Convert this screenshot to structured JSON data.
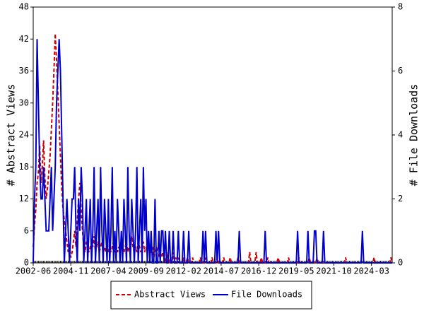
{
  "chart_data": {
    "type": "line",
    "y_label": "# Abstract Views",
    "y2_label": "# File Downloads",
    "x": [
      "2002-06",
      "2002-07",
      "2002-08",
      "2002-09",
      "2002-10",
      "2002-11",
      "2002-12",
      "2003-01",
      "2003-02",
      "2003-03",
      "2003-04",
      "2003-05",
      "2003-06",
      "2003-07",
      "2003-08",
      "2003-09",
      "2003-10",
      "2003-11",
      "2003-12",
      "2004-01",
      "2004-02",
      "2004-03",
      "2004-04",
      "2004-05",
      "2004-06",
      "2004-07",
      "2004-08",
      "2004-09",
      "2004-10",
      "2004-11",
      "2004-12",
      "2005-01",
      "2005-02",
      "2005-03",
      "2005-04",
      "2005-05",
      "2005-06",
      "2005-07",
      "2005-08",
      "2005-09",
      "2005-10",
      "2005-11",
      "2005-12",
      "2006-01",
      "2006-02",
      "2006-03",
      "2006-04",
      "2006-05",
      "2006-06",
      "2006-07",
      "2006-08",
      "2006-09",
      "2006-10",
      "2006-11",
      "2006-12",
      "2007-01",
      "2007-02",
      "2007-03",
      "2007-04",
      "2007-05",
      "2007-06",
      "2007-07",
      "2007-08",
      "2007-09",
      "2007-10",
      "2007-11",
      "2007-12",
      "2008-01",
      "2008-02",
      "2008-03",
      "2008-04",
      "2008-05",
      "2008-06",
      "2008-07",
      "2008-08",
      "2008-09",
      "2008-10",
      "2008-11",
      "2008-12",
      "2009-01",
      "2009-02",
      "2009-03",
      "2009-04",
      "2009-05",
      "2009-06",
      "2009-07",
      "2009-08",
      "2009-09",
      "2009-10",
      "2009-11",
      "2009-12",
      "2010-01",
      "2010-02",
      "2010-03",
      "2010-04",
      "2010-05",
      "2010-06",
      "2010-07",
      "2010-08",
      "2010-09",
      "2010-10",
      "2010-11",
      "2010-12",
      "2011-01",
      "2011-02",
      "2011-03",
      "2011-04",
      "2011-05",
      "2011-06",
      "2011-07",
      "2011-08",
      "2011-09",
      "2011-10",
      "2011-11",
      "2011-12",
      "2012-01",
      "2012-02",
      "2012-03",
      "2012-04",
      "2012-05",
      "2012-06",
      "2012-07",
      "2012-08",
      "2012-09",
      "2012-10",
      "2012-11",
      "2012-12",
      "2013-01",
      "2013-02",
      "2013-03",
      "2013-04",
      "2013-05",
      "2013-06",
      "2013-07",
      "2013-08",
      "2013-09",
      "2013-10",
      "2013-11",
      "2013-12",
      "2014-01",
      "2014-02",
      "2014-03",
      "2014-04",
      "2014-05",
      "2014-06",
      "2014-07",
      "2014-08",
      "2014-09",
      "2014-10",
      "2014-11",
      "2014-12",
      "2015-01",
      "2015-02",
      "2015-03",
      "2015-04",
      "2015-05",
      "2015-06",
      "2015-07",
      "2015-08",
      "2015-09",
      "2015-10",
      "2015-11",
      "2015-12",
      "2016-01",
      "2016-02",
      "2016-03",
      "2016-04",
      "2016-05",
      "2016-06",
      "2016-07",
      "2016-08",
      "2016-09",
      "2016-10",
      "2016-11",
      "2016-12",
      "2017-01",
      "2017-02",
      "2017-03",
      "2017-04",
      "2017-05",
      "2017-06",
      "2017-07",
      "2017-08",
      "2017-09",
      "2017-10",
      "2017-11",
      "2017-12",
      "2018-01",
      "2018-02",
      "2018-03",
      "2018-04",
      "2018-05",
      "2018-06",
      "2018-07",
      "2018-08",
      "2018-09",
      "2018-10",
      "2018-11",
      "2018-12",
      "2019-01",
      "2019-02",
      "2019-03",
      "2019-04",
      "2019-05",
      "2019-06",
      "2019-07",
      "2019-08",
      "2019-09",
      "2019-10",
      "2019-11",
      "2019-12",
      "2020-01",
      "2020-02",
      "2020-03",
      "2020-04",
      "2020-05",
      "2020-06",
      "2020-07",
      "2020-08",
      "2020-09",
      "2020-10",
      "2020-11",
      "2020-12",
      "2021-01",
      "2021-02",
      "2021-03",
      "2021-04",
      "2021-05",
      "2021-06",
      "2021-07",
      "2021-08",
      "2021-09",
      "2021-10",
      "2021-11",
      "2021-12",
      "2022-01",
      "2022-02",
      "2022-03",
      "2022-04",
      "2022-05",
      "2022-06",
      "2022-07",
      "2022-08",
      "2022-09",
      "2022-10",
      "2022-11",
      "2022-12",
      "2023-01",
      "2023-02",
      "2023-03",
      "2023-04",
      "2023-05",
      "2023-06",
      "2023-07",
      "2023-08",
      "2023-09",
      "2023-10",
      "2023-11",
      "2023-12",
      "2024-01",
      "2024-02",
      "2024-03",
      "2024-04",
      "2024-05",
      "2024-06",
      "2024-07",
      "2024-08",
      "2024-09",
      "2024-10",
      "2024-11",
      "2024-12",
      "2025-01",
      "2025-02",
      "2025-03",
      "2025-04",
      "2025-05",
      "2025-06",
      "2025-07"
    ],
    "xticks": [
      "2002-06",
      "2004-11",
      "2007-04",
      "2009-09",
      "2012-02",
      "2014-07",
      "2016-12",
      "2019-05",
      "2021-10",
      "2024-03"
    ],
    "ylim": [
      0,
      48
    ],
    "yticks": [
      0,
      6,
      12,
      18,
      24,
      30,
      36,
      42,
      48
    ],
    "y2lim": [
      0,
      8
    ],
    "y2ticks": [
      0,
      2,
      4,
      6,
      8
    ],
    "series": [
      {
        "name": "Abstract Views",
        "color": "#cc0000",
        "dash": true,
        "values": [
          3,
          7,
          10,
          15,
          17,
          22,
          15,
          18,
          23,
          16,
          12,
          14,
          17,
          20,
          25,
          30,
          36,
          43,
          38,
          32,
          26,
          20,
          14,
          10,
          8,
          6,
          4,
          2,
          3,
          1,
          2,
          4,
          6,
          3,
          8,
          12,
          15,
          10,
          6,
          3,
          2,
          4,
          3,
          2,
          3,
          4,
          3,
          5,
          2,
          3,
          4,
          2,
          3,
          4,
          2,
          3,
          2,
          4,
          2,
          3,
          2,
          3,
          4,
          2,
          3,
          2,
          3,
          2,
          4,
          3,
          2,
          3,
          4,
          2,
          3,
          2,
          5,
          3,
          2,
          3,
          2,
          4,
          3,
          2,
          3,
          4,
          2,
          3,
          2,
          4,
          2,
          2,
          3,
          1,
          2,
          3,
          2,
          1,
          2,
          1,
          2,
          1,
          0,
          2,
          1,
          0,
          1,
          0,
          2,
          0,
          1,
          0,
          1,
          0,
          0,
          0,
          1,
          0,
          0,
          1,
          0,
          0,
          0,
          1,
          0,
          0,
          0,
          0,
          0,
          1,
          0,
          0,
          0,
          1,
          0,
          0,
          0,
          0,
          1,
          0,
          0,
          0,
          1,
          0,
          0,
          0,
          0,
          1,
          0,
          0,
          0,
          0,
          1,
          0,
          0,
          0,
          0,
          0,
          1,
          0,
          0,
          0,
          0,
          0,
          0,
          0,
          0,
          2,
          0,
          0,
          0,
          0,
          2,
          0,
          0,
          0,
          1,
          0,
          0,
          0,
          0,
          1,
          0,
          0,
          0,
          0,
          0,
          0,
          0,
          1,
          0,
          0,
          0,
          0,
          0,
          0,
          0,
          1,
          0,
          0,
          0,
          0,
          0,
          0,
          0,
          1,
          0,
          0,
          0,
          0,
          0,
          0,
          0,
          1,
          0,
          0,
          0,
          0,
          0,
          1,
          0,
          0,
          0,
          0,
          0,
          0,
          0,
          0,
          0,
          0,
          0,
          0,
          0,
          0,
          0,
          0,
          0,
          0,
          0,
          0,
          0,
          1,
          0,
          0,
          0,
          0,
          0,
          0,
          0,
          0,
          0,
          0,
          0,
          0,
          0,
          0,
          0,
          0,
          0,
          0,
          0,
          0,
          0,
          1,
          0,
          0,
          0,
          0,
          0,
          0,
          0,
          0,
          0,
          0,
          0,
          0,
          1,
          0
        ]
      },
      {
        "name": "File Downloads",
        "color": "#0000cc",
        "axis": "y2",
        "values": [
          0,
          2,
          3,
          7,
          5,
          3,
          2,
          2,
          3,
          2,
          1,
          1,
          1,
          2,
          3,
          1,
          2,
          3,
          5,
          6,
          7,
          6,
          4,
          2,
          0,
          1,
          2,
          1,
          0,
          1,
          2,
          2,
          3,
          1,
          0,
          2,
          1,
          3,
          2,
          0,
          1,
          2,
          0,
          1,
          2,
          0,
          1,
          3,
          0,
          1,
          2,
          0,
          3,
          1,
          0,
          2,
          1,
          0,
          2,
          0,
          1,
          3,
          0,
          1,
          0,
          2,
          1,
          0,
          1,
          0,
          2,
          1,
          0,
          3,
          1,
          0,
          2,
          1,
          0,
          1,
          3,
          0,
          1,
          2,
          0,
          3,
          1,
          2,
          0,
          1,
          0,
          1,
          0,
          0,
          2,
          0,
          0,
          1,
          0,
          1,
          1,
          0,
          1,
          0,
          0,
          1,
          0,
          0,
          1,
          0,
          0,
          0,
          1,
          0,
          0,
          0,
          1,
          0,
          0,
          0,
          1,
          0,
          0,
          0,
          0,
          0,
          0,
          0,
          0,
          0,
          0,
          1,
          0,
          1,
          0,
          0,
          0,
          0,
          0,
          0,
          0,
          1,
          0,
          1,
          0,
          0,
          0,
          0,
          0,
          0,
          0,
          0,
          0,
          0,
          0,
          0,
          0,
          0,
          0,
          1,
          0,
          0,
          0,
          0,
          0,
          0,
          0,
          0,
          0,
          0,
          0,
          0,
          0,
          0,
          0,
          0,
          0,
          0,
          0,
          1,
          0,
          0,
          0,
          0,
          0,
          0,
          0,
          0,
          0,
          0,
          0,
          0,
          0,
          0,
          0,
          0,
          0,
          0,
          0,
          0,
          0,
          0,
          0,
          0,
          1,
          0,
          0,
          0,
          0,
          0,
          0,
          0,
          1,
          0,
          0,
          0,
          0,
          1,
          1,
          0,
          0,
          0,
          0,
          0,
          1,
          0,
          0,
          0,
          0,
          0,
          0,
          0,
          0,
          0,
          0,
          0,
          0,
          0,
          0,
          0,
          0,
          0,
          0,
          0,
          0,
          0,
          0,
          0,
          0,
          0,
          0,
          0,
          0,
          0,
          1,
          0,
          0,
          0,
          0,
          0,
          0,
          0,
          0,
          0,
          0,
          0,
          0,
          0,
          0,
          0,
          0,
          0,
          0,
          0,
          0,
          0,
          0,
          0
        ]
      }
    ]
  }
}
